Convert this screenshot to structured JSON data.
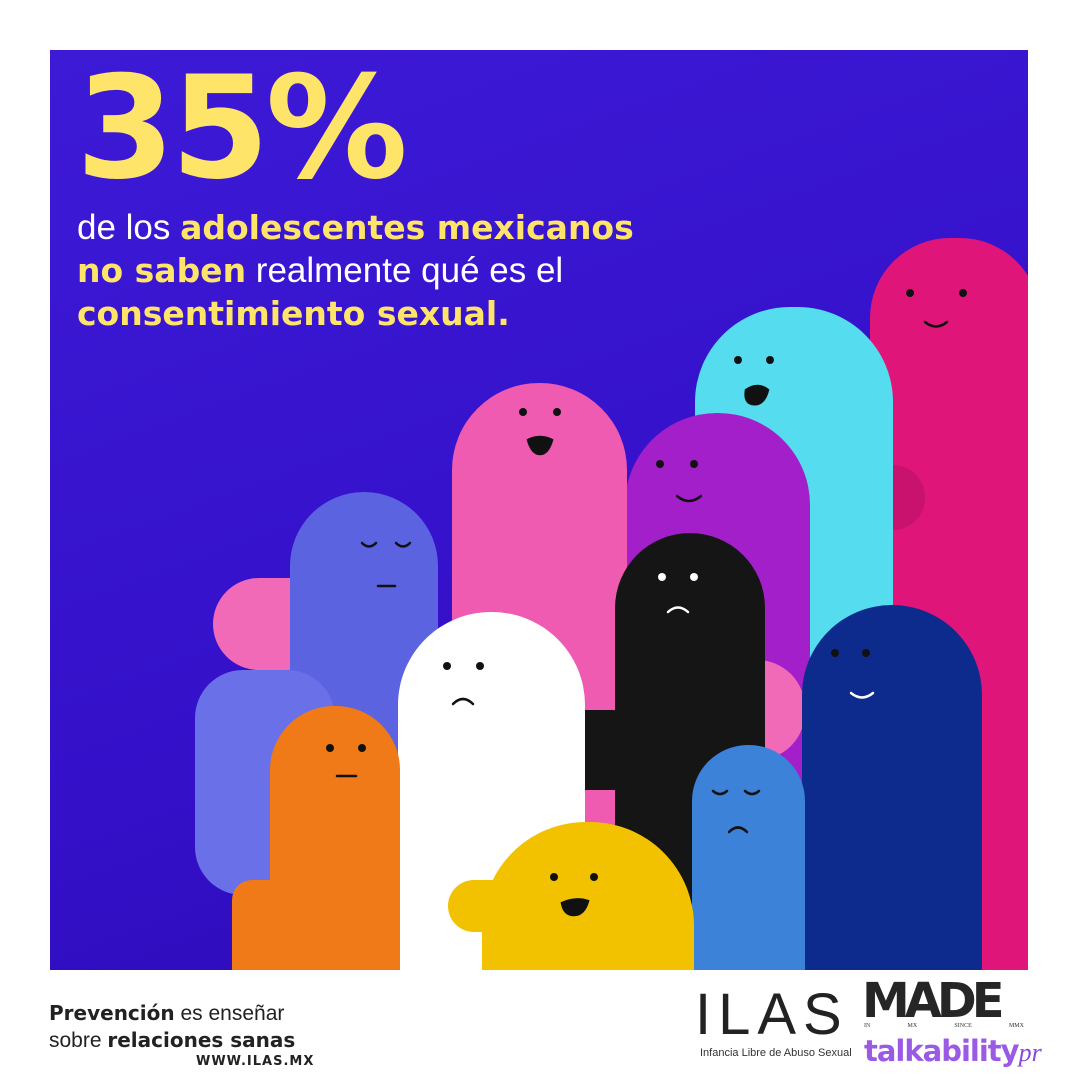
{
  "headline": {
    "stat": "35%",
    "line_parts": [
      "de los ",
      "adolescentes mexicanos",
      "no saben",
      " realmente qué es el",
      "consentimiento sexual."
    ]
  },
  "footer": {
    "tagline_parts": [
      "Prevención",
      " es enseñar",
      "sobre ",
      "relaciones sanas"
    ],
    "url": "WWW.ILAS.MX"
  },
  "logos": {
    "ilas": "ILAS",
    "ilas_subtitle": "Infancia Libre de Abuso Sexual",
    "made": "MADE",
    "made_sub": [
      "IN",
      "MX",
      "SINCE",
      "MMX"
    ],
    "talkability": "talkability",
    "talkability_suffix": "pr"
  },
  "colors": {
    "background": "#3a16d0",
    "highlight": "#ffe46a",
    "magenta": "#e0157a",
    "cyan": "#55dcef",
    "purple": "#a21fca",
    "pink": "#ee5bb0",
    "blue_violet": "#5b63e0",
    "black": "#151515",
    "white": "#ffffff",
    "orange": "#f07a18",
    "navy": "#0d2b8c",
    "light_blue": "#3b82d8",
    "yellow": "#f2c200"
  }
}
